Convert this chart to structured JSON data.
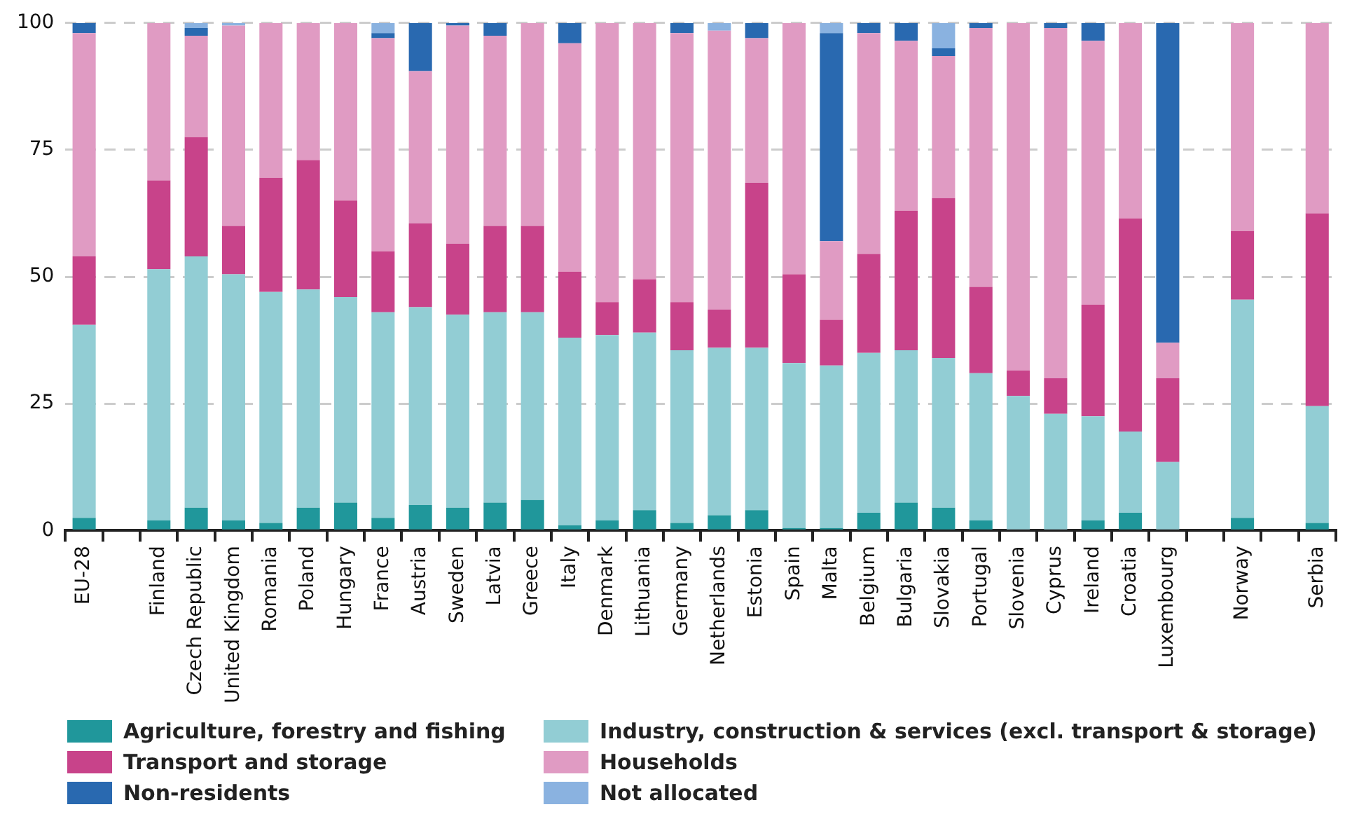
{
  "chart_data": {
    "type": "bar",
    "stacked": true,
    "categories": [
      "EU-28",
      null,
      "Finland",
      "Czech Republic",
      "United Kingdom",
      "Romania",
      "Poland",
      "Hungary",
      "France",
      "Austria",
      "Sweden",
      "Latvia",
      "Greece",
      "Italy",
      "Denmark",
      "Lithuania",
      "Germany",
      "Netherlands",
      "Estonia",
      "Spain",
      "Malta",
      "Belgium",
      "Bulgaria",
      "Slovakia",
      "Portugal",
      "Slovenia",
      "Cyprus",
      "Ireland",
      "Croatia",
      "Luxembourg",
      null,
      "Norway",
      null,
      "Serbia"
    ],
    "series": [
      {
        "name": "Agriculture, forestry and fishing",
        "color": "#20979b",
        "values": [
          2.5,
          null,
          2,
          4.5,
          2,
          1.5,
          4.5,
          5.5,
          2.5,
          5,
          4.5,
          5.5,
          6,
          1,
          2,
          4,
          1.5,
          3,
          4,
          0.5,
          0.5,
          3.5,
          5.5,
          4.5,
          2,
          0,
          0,
          2,
          3.5,
          0,
          null,
          2.5,
          null,
          1.5
        ]
      },
      {
        "name": "Transport and storage",
        "color": "#c8438a",
        "values": [
          13.5,
          null,
          17.5,
          23.5,
          9.5,
          22.5,
          25.5,
          19,
          12,
          16.5,
          14,
          17,
          17,
          13,
          6.5,
          10.5,
          9.5,
          7.5,
          32.5,
          17.5,
          9,
          19.5,
          27.5,
          31.5,
          17,
          5,
          7,
          22,
          42,
          16.5,
          null,
          13.5,
          null,
          38
        ]
      },
      {
        "name": "Non-residents",
        "color": "#2969b0",
        "values": [
          2,
          null,
          0,
          1.5,
          0,
          0,
          0,
          0,
          1,
          9.5,
          0.5,
          2.5,
          0,
          4,
          0,
          0,
          2,
          0,
          3,
          0,
          41,
          2,
          3.5,
          1.5,
          1,
          0,
          1,
          3.5,
          0,
          63,
          null,
          0,
          null,
          0
        ]
      },
      {
        "name": "Industry, construction & services (excl. transport & storage)",
        "color": "#92cdd4",
        "values": [
          38,
          null,
          49.5,
          49.5,
          48.5,
          45.5,
          43,
          40.5,
          40.5,
          39,
          38,
          37.5,
          37,
          37,
          36.5,
          35,
          34,
          33,
          32,
          32.5,
          32,
          31.5,
          30,
          29.5,
          29,
          26.5,
          23,
          20.5,
          16,
          13.5,
          null,
          43,
          null,
          23
        ]
      },
      {
        "name": "Households",
        "color": "#e09bc3",
        "values": [
          44,
          null,
          31,
          20,
          39.5,
          30.5,
          27,
          35,
          42,
          30,
          43,
          37.5,
          40,
          45,
          55,
          50.5,
          53,
          55,
          28.5,
          49.5,
          15.5,
          43.5,
          33.5,
          28,
          51,
          68.5,
          69,
          52,
          38.5,
          7,
          null,
          41,
          null,
          37.5
        ]
      },
      {
        "name": "Not allocated",
        "color": "#8ab2e0",
        "values": [
          0,
          null,
          0,
          1,
          0.5,
          0,
          0,
          0,
          2,
          0,
          0,
          0,
          0,
          0,
          0,
          0,
          0,
          1.5,
          0,
          0,
          2,
          0,
          0,
          5,
          0,
          0,
          0,
          0,
          0,
          0,
          null,
          0,
          null,
          0
        ]
      }
    ],
    "ylim": [
      0,
      100
    ],
    "yticks": [
      0,
      25,
      50,
      75,
      100
    ],
    "grid": "y",
    "legend": "bottom"
  }
}
